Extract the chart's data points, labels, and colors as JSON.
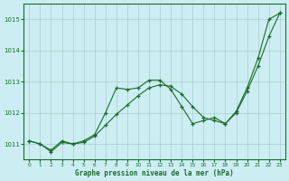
{
  "title": "Graphe pression niveau de la mer (hPa)",
  "bg_color": "#cceef2",
  "grid_color": "#aacccc",
  "line_color": "#1a6b2a",
  "xlim": [
    -0.5,
    23.5
  ],
  "ylim": [
    1010.5,
    1015.5
  ],
  "yticks": [
    1011,
    1012,
    1013,
    1014,
    1015
  ],
  "xticks": [
    0,
    1,
    2,
    3,
    4,
    5,
    6,
    7,
    8,
    9,
    10,
    11,
    12,
    13,
    14,
    15,
    16,
    17,
    18,
    19,
    20,
    21,
    22,
    23
  ],
  "series": [
    {
      "x": [
        0,
        1,
        2,
        3,
        4,
        5,
        6,
        7,
        8,
        9,
        10,
        11,
        12,
        13,
        14,
        15,
        16,
        17,
        18,
        19,
        20,
        21,
        22,
        23
      ],
      "y": [
        1011.1,
        1011.0,
        1010.8,
        1011.1,
        1011.0,
        1011.1,
        1011.3,
        1012.0,
        1012.8,
        1012.75,
        1012.8,
        1013.05,
        1013.05,
        1012.75,
        1012.2,
        1011.65,
        1011.75,
        1011.85,
        1011.65,
        1012.05,
        1012.8,
        1013.75,
        1015.0,
        1015.2
      ]
    },
    {
      "x": [
        0,
        1,
        2,
        3,
        4,
        5,
        6,
        7,
        8,
        9,
        10,
        11,
        12,
        13,
        14,
        15,
        16,
        17,
        18,
        19,
        20,
        21,
        22,
        23
      ],
      "y": [
        1011.1,
        1011.0,
        1010.75,
        1011.05,
        1011.0,
        1011.05,
        1011.25,
        1011.6,
        1011.95,
        1012.25,
        1012.55,
        1012.8,
        1012.9,
        1012.85,
        1012.6,
        1012.2,
        1011.85,
        1011.75,
        1011.65,
        1012.0,
        1012.7,
        1013.5,
        1014.45,
        1015.2
      ]
    },
    {
      "x": [
        0,
        7,
        8,
        9,
        10,
        11,
        12,
        13,
        14,
        15,
        16,
        17,
        18,
        19,
        20,
        21,
        22,
        23
      ],
      "y": [
        1011.1,
        1012.0,
        1012.75,
        1012.75,
        1012.75,
        1013.05,
        1013.05,
        1013.0,
        1012.6,
        1011.65,
        1011.65,
        1011.85,
        1011.65,
        1012.05,
        1012.8,
        1013.75,
        1015.0,
        1015.2
      ]
    }
  ]
}
